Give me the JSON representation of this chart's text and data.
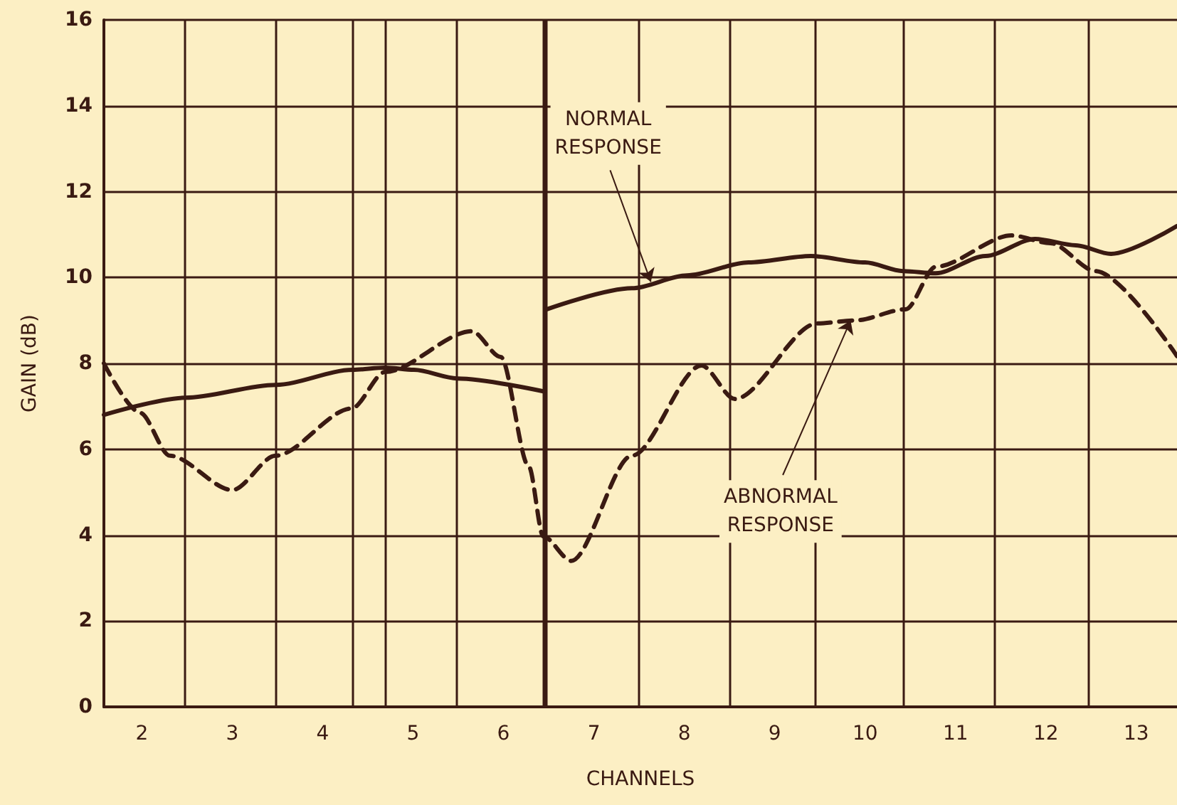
{
  "chart_data": {
    "type": "line",
    "xlabel": "CHANNELS",
    "ylabel": "GAIN (dB)",
    "xlim": [
      1.58,
      13.45
    ],
    "ylim": [
      0,
      16
    ],
    "xticks": [
      {
        "value": 2,
        "label": "2"
      },
      {
        "value": 2.48,
        "label": null
      },
      {
        "value": 3,
        "label": "3"
      },
      {
        "value": 3.48,
        "label": null
      },
      {
        "value": 4,
        "label": "4"
      },
      {
        "value": 4.33,
        "label": null
      },
      {
        "value": 4.69,
        "label": null
      },
      {
        "value": 5,
        "label": "5"
      },
      {
        "value": 5.48,
        "label": null
      },
      {
        "value": 6,
        "label": "6"
      },
      {
        "value": 6.46,
        "label": null
      },
      {
        "value": 7,
        "label": "7"
      },
      {
        "value": 7.5,
        "label": null
      },
      {
        "value": 8,
        "label": "8"
      },
      {
        "value": 8.5,
        "label": null
      },
      {
        "value": 9,
        "label": "9"
      },
      {
        "value": 9.45,
        "label": null
      },
      {
        "value": 10,
        "label": "10"
      },
      {
        "value": 10.43,
        "label": null
      },
      {
        "value": 11,
        "label": "11"
      },
      {
        "value": 11.43,
        "label": null
      },
      {
        "value": 12,
        "label": "12"
      },
      {
        "value": 12.47,
        "label": null
      },
      {
        "value": 13,
        "label": "13"
      }
    ],
    "yticks": [
      0,
      2,
      4,
      6,
      8,
      10,
      12,
      14,
      16
    ],
    "grid": true,
    "marker": "none",
    "ref_lines": [
      {
        "axis": "x",
        "value": 6.46,
        "label": null
      }
    ],
    "annotations": [
      {
        "text": "NORMAL\nRESPONSE",
        "x": 7.63,
        "y": 9.9
      },
      {
        "text": "ABNORMAL\nRESPONSE",
        "x": 9.84,
        "y": 9.0
      }
    ],
    "series": [
      {
        "color": "#3a1a12",
        "line_style": "solid",
        "x": [
          1.58,
          2.48,
          3.48,
          4.33,
          4.69,
          5.01,
          5.49,
          6.44,
          6.46,
          6.48,
          7.42,
          8.03,
          8.71,
          9.4,
          10.0,
          10.42,
          10.78,
          11.33,
          11.88,
          12.33,
          12.72,
          13.45
        ],
        "values": [
          6.8,
          7.2,
          7.5,
          7.85,
          7.9,
          7.85,
          7.65,
          7.35,
          null,
          9.26,
          9.75,
          10.05,
          10.35,
          10.5,
          10.35,
          10.15,
          10.1,
          10.5,
          10.9,
          10.75,
          10.55,
          11.2
        ]
      },
      {
        "color": "#3a1a12",
        "line_style": "dashed",
        "x": [
          1.58,
          1.98,
          2.31,
          3.0,
          3.48,
          4.32,
          4.69,
          5.65,
          5.97,
          6.28,
          6.44,
          6.75,
          7.42,
          8.19,
          8.56,
          9.47,
          9.89,
          10.45,
          10.78,
          11.62,
          12.05,
          12.55,
          13.45
        ],
        "values": [
          8.0,
          6.85,
          5.85,
          5.05,
          5.85,
          6.95,
          7.8,
          8.75,
          8.15,
          5.6,
          3.97,
          3.4,
          5.85,
          7.95,
          7.17,
          8.93,
          9.0,
          9.26,
          10.25,
          10.98,
          10.8,
          10.15,
          8.17
        ]
      }
    ]
  }
}
